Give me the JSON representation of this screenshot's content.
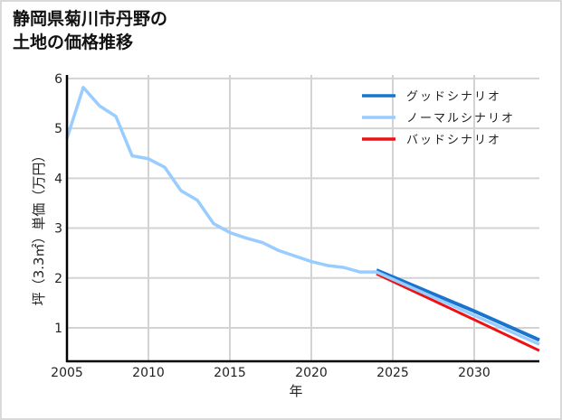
{
  "title_line1": "静岡県菊川市丹野の",
  "title_line2": "土地の価格推移",
  "colors": {
    "good": "#1874cd",
    "normal": "#99ccff",
    "bad": "#ee1111",
    "grid": "#d3d3d3",
    "axis": "#000000",
    "border": "#d9d9d9"
  },
  "chart_data": {
    "type": "line",
    "title": "静岡県菊川市丹野の土地の価格推移",
    "xlabel": "年",
    "ylabel": "坪（3.3㎡）単価（万円）",
    "xlim": [
      2005,
      2034
    ],
    "ylim": [
      0.33,
      6.07
    ],
    "xticks": [
      2005,
      2010,
      2015,
      2020,
      2025,
      2030
    ],
    "yticks": [
      1,
      2,
      3,
      4,
      5,
      6
    ],
    "grid": true,
    "legend_position": "upper right",
    "series": [
      {
        "name": "グッドシナリオ",
        "key": "good",
        "x": [
          2024,
          2030,
          2034
        ],
        "values": [
          2.12,
          1.3,
          0.72
        ]
      },
      {
        "name": "ノーマルシナリオ",
        "key": "normal",
        "x": [
          2005,
          2006,
          2007,
          2008,
          2009,
          2010,
          2011,
          2012,
          2013,
          2014,
          2015,
          2016,
          2017,
          2018,
          2019,
          2020,
          2021,
          2022,
          2023,
          2024,
          2030,
          2034
        ],
        "values": [
          4.8,
          5.82,
          5.45,
          5.24,
          4.45,
          4.39,
          4.22,
          3.75,
          3.56,
          3.09,
          2.91,
          2.8,
          2.71,
          2.55,
          2.44,
          2.33,
          2.25,
          2.21,
          2.12,
          2.12,
          1.25,
          0.67
        ]
      },
      {
        "name": "バッドシナリオ",
        "key": "bad",
        "x": [
          2024,
          2030,
          2034
        ],
        "values": [
          2.12,
          1.2,
          0.58
        ]
      }
    ]
  }
}
